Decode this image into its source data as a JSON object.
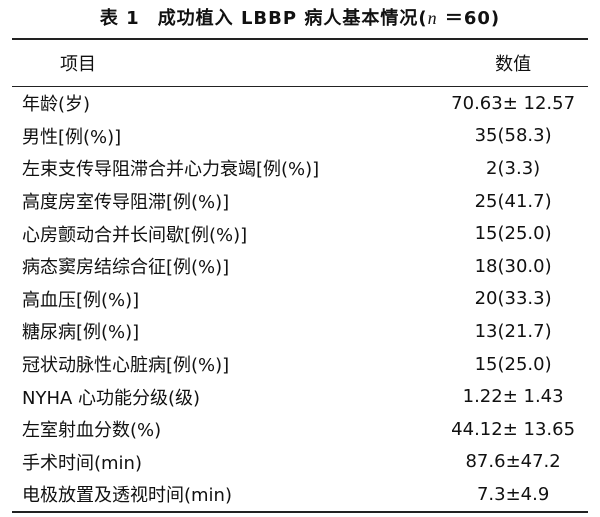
{
  "title": {
    "number": "表 1",
    "text": "成功植入 LBBP 病人基本情况(",
    "variable": "n",
    "tail": " ＝60)"
  },
  "table": {
    "header": [
      "项目",
      "数值"
    ],
    "rows": [
      [
        "年龄(岁)",
        "70.63± 12.57"
      ],
      [
        "男性[例(%)]",
        "35(58.3)"
      ],
      [
        "左束支传导阻滞合并心力衰竭[例(%)]",
        "2(3.3)"
      ],
      [
        "高度房室传导阻滞[例(%)]",
        "25(41.7)"
      ],
      [
        "心房颤动合并长间歇[例(%)]",
        "15(25.0)"
      ],
      [
        "病态窦房结综合征[例(%)]",
        "18(30.0)"
      ],
      [
        "高血压[例(%)]",
        "20(33.3)"
      ],
      [
        "糖尿病[例(%)]",
        "13(21.7)"
      ],
      [
        "冠状动脉性心脏病[例(%)]",
        "15(25.0)"
      ],
      [
        "NYHA 心功能分级(级)",
        "1.22± 1.43"
      ],
      [
        "左室射血分数(%)",
        "44.12± 13.65"
      ],
      [
        "手术时间(min)",
        "87.6±47.2"
      ],
      [
        "电极放置及透视时间(min)",
        "7.3±4.9"
      ]
    ]
  }
}
